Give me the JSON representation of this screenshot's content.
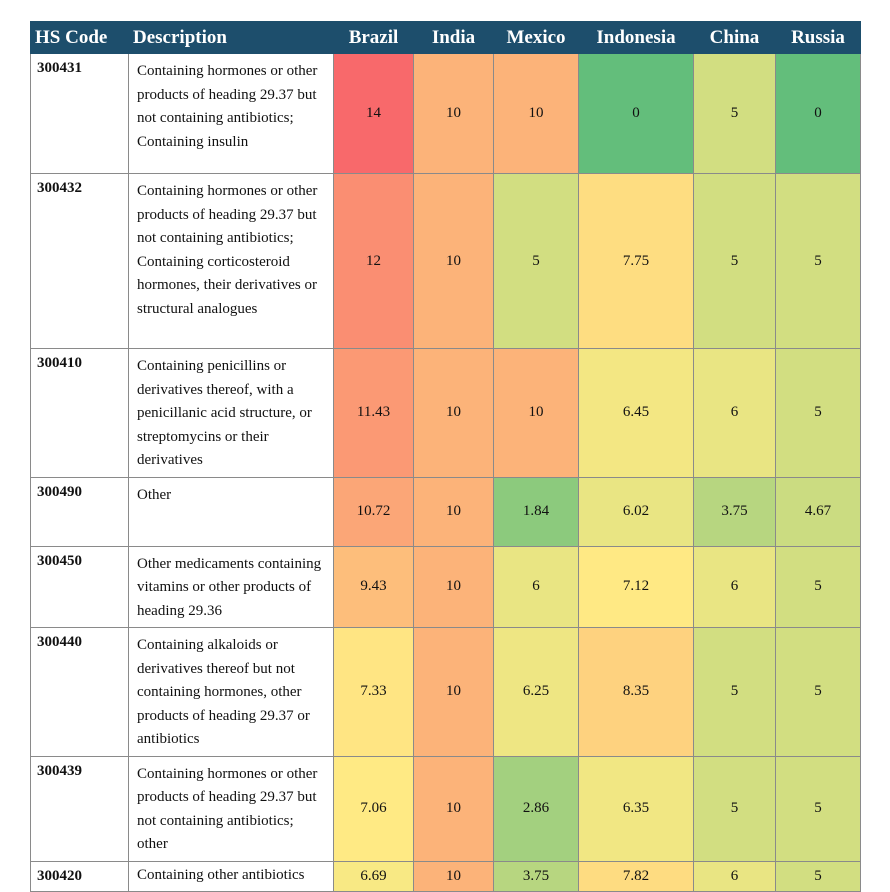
{
  "table": {
    "columns": [
      "HS Code",
      "Description",
      "Brazil",
      "India",
      "Mexico",
      "Indonesia",
      "China",
      "Russia"
    ],
    "rows": [
      {
        "code": "300431",
        "description": "Containing hormones or other products of heading 29.37 but not containing antibiotics; Containing insulin",
        "values": [
          14,
          10,
          10,
          0,
          5,
          0
        ]
      },
      {
        "code": "300432",
        "description": "Containing hormones or other products of heading 29.37 but not containing antibiotics; Containing corticosteroid hormones, their derivatives or structural analogues",
        "values": [
          12,
          10,
          5,
          7.75,
          5,
          5
        ]
      },
      {
        "code": "300410",
        "description": "Containing penicillins or derivatives thereof, with a penicillanic acid structure, or streptomycins or their derivatives",
        "values": [
          11.43,
          10,
          10,
          6.45,
          6,
          5
        ]
      },
      {
        "code": "300490",
        "description": "Other",
        "values": [
          10.72,
          10,
          1.84,
          6.02,
          3.75,
          4.67
        ]
      },
      {
        "code": "300450",
        "description": "Other medicaments containing vitamins or other products of heading 29.36",
        "values": [
          9.43,
          10,
          6,
          7.12,
          6,
          5
        ]
      },
      {
        "code": "300440",
        "description": "Containing alkaloids or derivatives thereof but not containing hormones, other products of heading 29.37 or antibiotics",
        "values": [
          7.33,
          10,
          6.25,
          8.35,
          5,
          5
        ]
      },
      {
        "code": "300439",
        "description": "Containing hormones or other products of heading 29.37 but not containing antibiotics; other",
        "values": [
          7.06,
          10,
          2.86,
          6.35,
          5,
          5
        ]
      },
      {
        "code": "300420",
        "description": "Containing other antibiotics",
        "values": [
          6.69,
          10,
          3.75,
          7.82,
          6,
          5
        ]
      }
    ]
  }
}
